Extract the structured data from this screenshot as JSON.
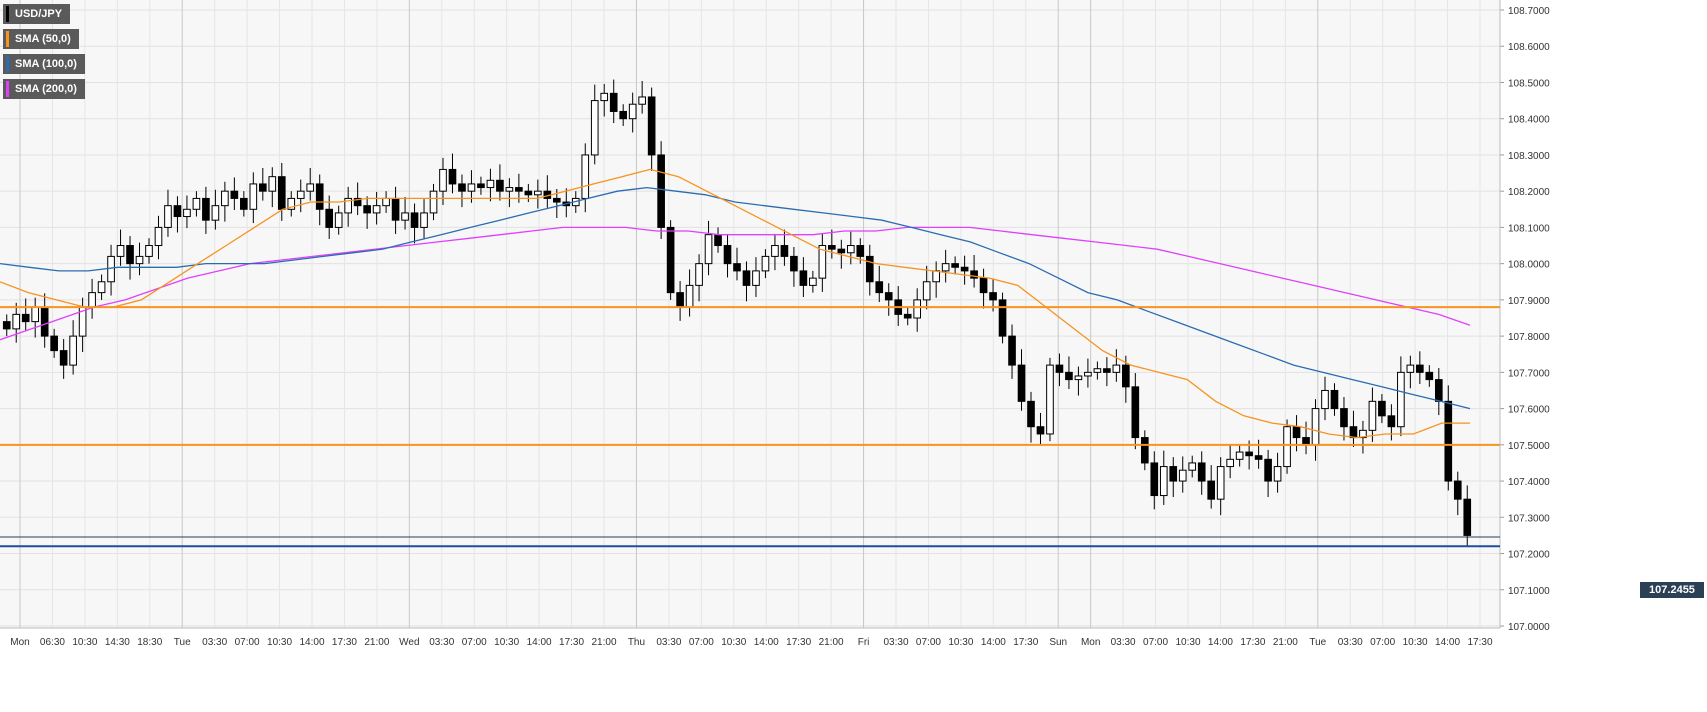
{
  "legend": {
    "items": [
      {
        "label": "USD/JPY",
        "color": "#000000"
      },
      {
        "label": "SMA (50,0)",
        "color": "#f7931e"
      },
      {
        "label": "SMA (100,0)",
        "color": "#2b6cb0"
      },
      {
        "label": "SMA (200,0)",
        "color": "#e040fb"
      }
    ]
  },
  "current_price": "107.2455",
  "chart_data": {
    "type": "candlestick",
    "ylim": [
      107.0,
      108.7
    ],
    "y_ticks": [
      "108.7000",
      "108.6000",
      "108.5000",
      "108.4000",
      "108.3000",
      "108.2000",
      "108.1000",
      "108.0000",
      "107.9000",
      "107.8000",
      "107.7000",
      "107.6000",
      "107.5000",
      "107.4000",
      "107.3000",
      "107.2000",
      "107.1000",
      "107.0000"
    ],
    "x_ticks": [
      "Mon",
      "06:30",
      "10:30",
      "14:30",
      "18:30",
      "Tue",
      "03:30",
      "07:00",
      "10:30",
      "14:00",
      "17:30",
      "21:00",
      "Wed",
      "03:30",
      "07:00",
      "10:30",
      "14:00",
      "17:30",
      "21:00",
      "Thu",
      "03:30",
      "07:00",
      "10:30",
      "14:00",
      "17:30",
      "21:00",
      "Fri",
      "03:30",
      "07:00",
      "10:30",
      "14:00",
      "17:30",
      "Sun",
      "Mon",
      "03:30",
      "07:00",
      "10:30",
      "14:00",
      "17:30",
      "21:00",
      "Tue",
      "03:30",
      "07:00",
      "10:30",
      "14:00",
      "17:30"
    ],
    "separator_labels": [
      "Tue",
      "Wed",
      "Thu",
      "Fri",
      "Sun",
      "Mon",
      "Tue"
    ],
    "horizontal_levels": [
      {
        "value": 107.88,
        "color": "#f7931e"
      },
      {
        "value": 107.5,
        "color": "#f7931e"
      },
      {
        "value": 107.22,
        "color": "#1f4e9e"
      },
      {
        "value": 107.2455,
        "color": "#2b3f55"
      }
    ],
    "close_path": [
      107.82,
      107.86,
      107.84,
      107.88,
      107.8,
      107.76,
      107.72,
      107.8,
      107.88,
      107.92,
      107.95,
      108.02,
      108.05,
      108.0,
      108.02,
      108.05,
      108.1,
      108.16,
      108.13,
      108.15,
      108.18,
      108.12,
      108.16,
      108.2,
      108.18,
      108.15,
      108.22,
      108.2,
      108.24,
      108.15,
      108.18,
      108.2,
      108.22,
      108.15,
      108.1,
      108.14,
      108.18,
      108.16,
      108.14,
      108.16,
      108.18,
      108.12,
      108.14,
      108.1,
      108.14,
      108.2,
      108.26,
      108.22,
      108.2,
      108.22,
      108.21,
      108.23,
      108.2,
      108.21,
      108.2,
      108.19,
      108.2,
      108.18,
      108.17,
      108.16,
      108.18,
      108.3,
      108.45,
      108.47,
      108.42,
      108.4,
      108.44,
      108.46,
      108.3,
      108.1,
      107.92,
      107.88,
      107.94,
      108.0,
      108.08,
      108.05,
      108.0,
      107.98,
      107.94,
      107.98,
      108.02,
      108.05,
      108.02,
      107.98,
      107.94,
      107.96,
      108.05,
      108.04,
      108.03,
      108.05,
      108.02,
      107.95,
      107.92,
      107.9,
      107.86,
      107.85,
      107.9,
      107.95,
      107.98,
      108.0,
      107.99,
      107.98,
      107.96,
      107.92,
      107.9,
      107.8,
      107.72,
      107.62,
      107.55,
      107.53,
      107.72,
      107.7,
      107.68,
      107.69,
      107.7,
      107.71,
      107.7,
      107.72,
      107.66,
      107.52,
      107.45,
      107.36,
      107.44,
      107.4,
      107.43,
      107.45,
      107.4,
      107.35,
      107.44,
      107.46,
      107.48,
      107.47,
      107.46,
      107.4,
      107.44,
      107.55,
      107.52,
      107.5,
      107.6,
      107.65,
      107.6,
      107.55,
      107.52,
      107.54,
      107.62,
      107.58,
      107.55,
      107.7,
      107.72,
      107.7,
      107.68,
      107.62,
      107.4,
      107.35,
      107.25
    ],
    "sma_50": [
      107.95,
      107.92,
      107.9,
      107.88,
      107.88,
      107.9,
      107.95,
      108.0,
      108.05,
      108.1,
      108.15,
      108.17,
      108.17,
      108.18,
      108.18,
      108.18,
      108.18,
      108.18,
      108.18,
      108.18,
      108.2,
      108.22,
      108.24,
      108.26,
      108.24,
      108.2,
      108.16,
      108.12,
      108.08,
      108.04,
      108.02,
      108.0,
      107.99,
      107.98,
      107.97,
      107.96,
      107.94,
      107.88,
      107.82,
      107.76,
      107.72,
      107.7,
      107.68,
      107.62,
      107.58,
      107.56,
      107.55,
      107.53,
      107.52,
      107.53,
      107.53,
      107.56,
      107.56
    ],
    "sma_100": [
      108.0,
      107.99,
      107.98,
      107.98,
      107.99,
      107.99,
      107.99,
      108.0,
      108.0,
      108.0,
      108.01,
      108.02,
      108.03,
      108.04,
      108.06,
      108.08,
      108.1,
      108.12,
      108.14,
      108.16,
      108.18,
      108.2,
      108.21,
      108.2,
      108.19,
      108.17,
      108.16,
      108.15,
      108.14,
      108.13,
      108.12,
      108.1,
      108.08,
      108.06,
      108.03,
      108.0,
      107.96,
      107.92,
      107.9,
      107.87,
      107.84,
      107.81,
      107.78,
      107.75,
      107.72,
      107.7,
      107.68,
      107.66,
      107.64,
      107.62,
      107.6
    ],
    "sma_200": [
      107.79,
      107.82,
      107.85,
      107.88,
      107.9,
      107.93,
      107.96,
      107.98,
      108.0,
      108.01,
      108.02,
      108.03,
      108.04,
      108.05,
      108.06,
      108.07,
      108.08,
      108.09,
      108.1,
      108.1,
      108.1,
      108.09,
      108.09,
      108.08,
      108.08,
      108.08,
      108.08,
      108.09,
      108.09,
      108.1,
      108.1,
      108.1,
      108.09,
      108.08,
      108.07,
      108.06,
      108.05,
      108.04,
      108.02,
      108.0,
      107.98,
      107.96,
      107.94,
      107.92,
      107.9,
      107.88,
      107.86,
      107.83
    ]
  }
}
